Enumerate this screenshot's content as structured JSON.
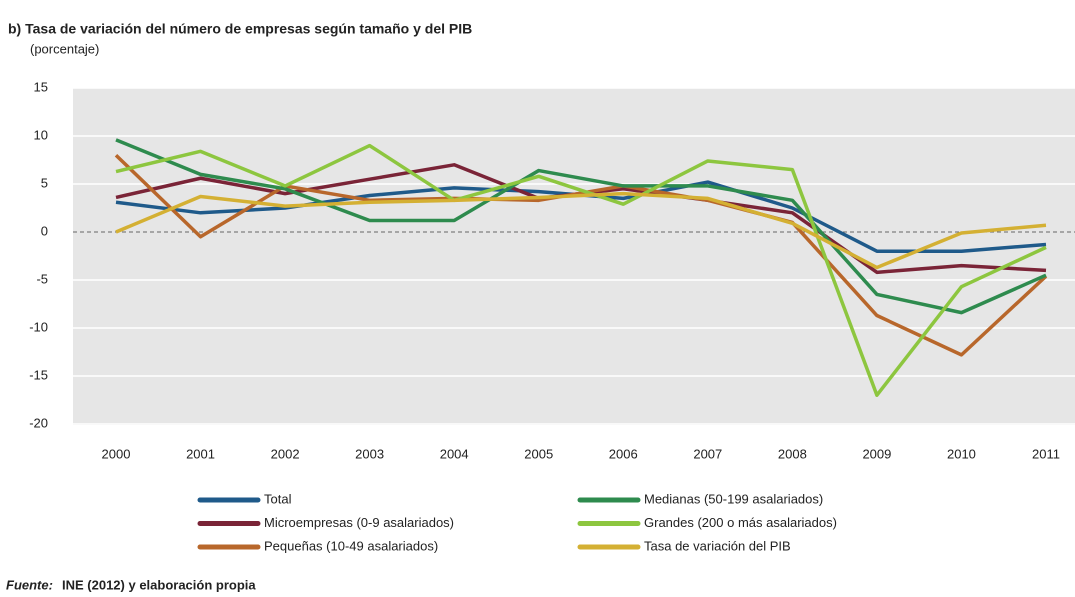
{
  "chart_data": {
    "type": "line",
    "title": "b) Tasa de variación del número de empresas según tamaño  y del PIB",
    "subtitle": "(porcentaje)",
    "categories": [
      "2000",
      "2001",
      "2002",
      "2003",
      "2004",
      "2005",
      "2006",
      "2007",
      "2008",
      "2009",
      "2010",
      "2011"
    ],
    "series": [
      {
        "name": "Total",
        "color": "#1f5a8a",
        "values": [
          3.1,
          2.0,
          2.5,
          3.8,
          4.6,
          4.2,
          3.5,
          5.2,
          2.5,
          -2.0,
          -2.0,
          -1.3
        ]
      },
      {
        "name": "Microempresas (0-9 asalariados)",
        "color": "#7a2437",
        "values": [
          3.6,
          5.6,
          4.0,
          5.5,
          7.0,
          3.5,
          4.5,
          3.3,
          2.0,
          -4.2,
          -3.5,
          -4.0
        ]
      },
      {
        "name": "Pequeñas (10-49 asalariados)",
        "color": "#b8672b",
        "values": [
          8.0,
          -0.5,
          4.8,
          3.3,
          3.5,
          3.3,
          4.8,
          3.3,
          1.0,
          -8.7,
          -12.8,
          -4.6
        ]
      },
      {
        "name": "Medianas (50-199 asalariados)",
        "color": "#2e8b4e",
        "values": [
          9.6,
          6.0,
          4.5,
          1.2,
          1.2,
          6.4,
          4.8,
          4.8,
          3.3,
          -6.5,
          -8.4,
          -4.5
        ]
      },
      {
        "name": "Grandes (200 o más asalariados)",
        "color": "#8dc63f",
        "values": [
          6.3,
          8.4,
          4.8,
          9.0,
          3.3,
          5.8,
          2.9,
          7.4,
          6.5,
          -17.0,
          -5.7,
          -1.6
        ]
      },
      {
        "name": "Tasa de variación del PIB",
        "color": "#d4b033",
        "values": [
          0.0,
          3.7,
          2.7,
          3.1,
          3.3,
          3.6,
          4.0,
          3.5,
          0.9,
          -3.7,
          -0.1,
          0.7
        ]
      }
    ],
    "ylim": [
      -20,
      15
    ],
    "yticks": [
      15,
      10,
      5,
      0,
      -5,
      -10,
      -15,
      -20
    ],
    "grid": true,
    "source": {
      "label": "Fuente:",
      "text": "INE (2012) y elaboración propia"
    }
  }
}
